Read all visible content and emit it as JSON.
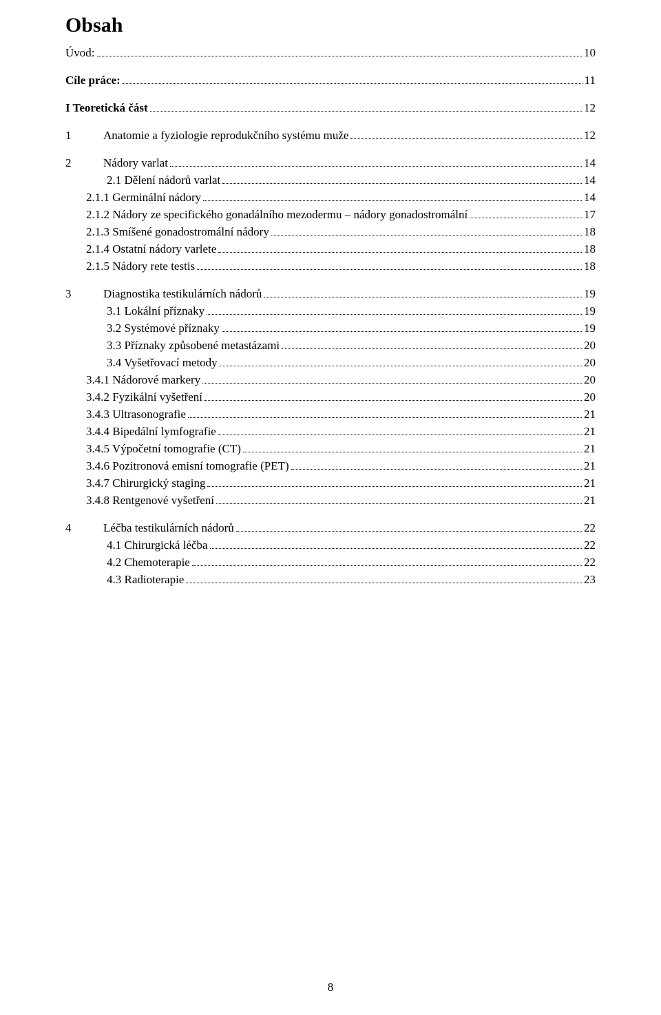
{
  "title": "Obsah",
  "footer_page": "8",
  "entries": [
    {
      "text": "Úvod:",
      "page": "10",
      "bold": false,
      "indent": 0,
      "gap": "wide",
      "chapterNum": ""
    },
    {
      "text": "Cíle práce:",
      "page": "11",
      "bold": true,
      "indent": 0,
      "gap": "wide",
      "chapterNum": ""
    },
    {
      "text": "I Teoretická část",
      "page": "12",
      "bold": true,
      "indent": 0,
      "gap": "wide",
      "chapterNum": ""
    },
    {
      "text": "Anatomie a fyziologie reprodukčního systému muže",
      "page": "12",
      "bold": false,
      "indent": 0,
      "gap": "wide",
      "chapterNum": "1"
    },
    {
      "text": "Nádory varlat",
      "page": "14",
      "bold": false,
      "indent": 0,
      "gap": "narrow",
      "chapterNum": "2"
    },
    {
      "text": "2.1 Dělení nádorů varlat",
      "page": "14",
      "bold": false,
      "indent": 1,
      "gap": "narrow",
      "chapterNum": ""
    },
    {
      "text": "2.1.1 Germinální nádory",
      "page": "14",
      "bold": false,
      "indent": 2,
      "gap": "narrow",
      "chapterNum": ""
    },
    {
      "text": "2.1.2 Nádory ze specifického gonadálního mezodermu – nádory gonadostromální",
      "page": "17",
      "bold": false,
      "indent": 2,
      "gap": "narrow",
      "chapterNum": ""
    },
    {
      "text": "2.1.3 Smíšené gonadostromální nádory",
      "page": "18",
      "bold": false,
      "indent": 2,
      "gap": "narrow",
      "chapterNum": ""
    },
    {
      "text": "2.1.4 Ostatní nádory varlete",
      "page": "18",
      "bold": false,
      "indent": 2,
      "gap": "narrow",
      "chapterNum": ""
    },
    {
      "text": "2.1.5 Nádory rete testis",
      "page": "18",
      "bold": false,
      "indent": 2,
      "gap": "wide",
      "chapterNum": ""
    },
    {
      "text": "Diagnostika testikulárních nádorů",
      "page": "19",
      "bold": false,
      "indent": 0,
      "gap": "narrow",
      "chapterNum": "3"
    },
    {
      "text": "3.1 Lokální příznaky",
      "page": "19",
      "bold": false,
      "indent": 1,
      "gap": "narrow",
      "chapterNum": ""
    },
    {
      "text": "3.2 Systémové příznaky",
      "page": "19",
      "bold": false,
      "indent": 1,
      "gap": "narrow",
      "chapterNum": ""
    },
    {
      "text": "3.3 Příznaky způsobené metastázami",
      "page": "20",
      "bold": false,
      "indent": 1,
      "gap": "narrow",
      "chapterNum": ""
    },
    {
      "text": "3.4 Vyšetřovací metody",
      "page": "20",
      "bold": false,
      "indent": 1,
      "gap": "narrow",
      "chapterNum": ""
    },
    {
      "text": "3.4.1 Nádorové markery",
      "page": "20",
      "bold": false,
      "indent": 2,
      "gap": "narrow",
      "chapterNum": ""
    },
    {
      "text": "3.4.2 Fyzikální vyšetření",
      "page": "20",
      "bold": false,
      "indent": 2,
      "gap": "narrow",
      "chapterNum": ""
    },
    {
      "text": "3.4.3 Ultrasonografie",
      "page": "21",
      "bold": false,
      "indent": 2,
      "gap": "narrow",
      "chapterNum": ""
    },
    {
      "text": "3.4.4 Bipedální lymfografie",
      "page": "21",
      "bold": false,
      "indent": 2,
      "gap": "narrow",
      "chapterNum": ""
    },
    {
      "text": "3.4.5 Výpočetní tomografie (CT)",
      "page": "21",
      "bold": false,
      "indent": 2,
      "gap": "narrow",
      "chapterNum": ""
    },
    {
      "text": "3.4.6 Pozitronová emisní tomografie (PET)",
      "page": "21",
      "bold": false,
      "indent": 2,
      "gap": "narrow",
      "chapterNum": ""
    },
    {
      "text": "3.4.7 Chirurgický staging",
      "page": "21",
      "bold": false,
      "indent": 2,
      "gap": "narrow",
      "chapterNum": ""
    },
    {
      "text": "3.4.8 Rentgenové vyšetření",
      "page": "21",
      "bold": false,
      "indent": 2,
      "gap": "wide",
      "chapterNum": ""
    },
    {
      "text": "Léčba testikulárních nádorů",
      "page": "22",
      "bold": false,
      "indent": 0,
      "gap": "narrow",
      "chapterNum": "4"
    },
    {
      "text": "4.1 Chirurgická léčba",
      "page": "22",
      "bold": false,
      "indent": 1,
      "gap": "narrow",
      "chapterNum": ""
    },
    {
      "text": "4.2 Chemoterapie",
      "page": "22",
      "bold": false,
      "indent": 1,
      "gap": "narrow",
      "chapterNum": ""
    },
    {
      "text": "4.3 Radioterapie",
      "page": "23",
      "bold": false,
      "indent": 1,
      "gap": "narrow",
      "chapterNum": ""
    }
  ]
}
